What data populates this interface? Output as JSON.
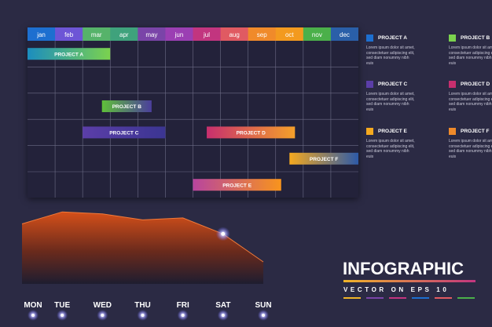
{
  "chart_data": [
    {
      "type": "gantt",
      "categories": [
        "jan",
        "feb",
        "mar",
        "apr",
        "may",
        "jun",
        "jul",
        "aug",
        "sep",
        "oct",
        "nov",
        "dec"
      ],
      "month_colors": [
        "#1d6fd0",
        "#6d55d6",
        "#56b36a",
        "#3fa27c",
        "#7a44a8",
        "#9b3fb3",
        "#c2357f",
        "#e05a62",
        "#f08a2a",
        "#f39a1f",
        "#4bb04a",
        "#2a5fa8"
      ],
      "tasks": [
        {
          "name": "PROJECT A",
          "start": 0,
          "end": 3,
          "row": 0,
          "colors": [
            "#1b8dbf",
            "#7bd24e"
          ]
        },
        {
          "name": "PROJECT B",
          "start": 2.7,
          "end": 4.5,
          "row": 2,
          "colors": [
            "#5fbf3a",
            "#4b3e9c"
          ]
        },
        {
          "name": "PROJECT C",
          "start": 2,
          "end": 5,
          "row": 3,
          "colors": [
            "#5b3ea8",
            "#3b3592"
          ]
        },
        {
          "name": "PROJECT D",
          "start": 6.5,
          "end": 9.7,
          "row": 3,
          "colors": [
            "#c72f6e",
            "#f4a02a"
          ]
        },
        {
          "name": "PROJECT F",
          "start": 9.5,
          "end": 12,
          "row": 4,
          "colors": [
            "#f5a91f",
            "#2d5aa8"
          ]
        },
        {
          "name": "PROJECT E",
          "start": 6,
          "end": 9.2,
          "row": 5,
          "colors": [
            "#b8449f",
            "#f8941c"
          ]
        }
      ]
    },
    {
      "type": "area",
      "categories": [
        "MON",
        "TUE",
        "WED",
        "THU",
        "FRI",
        "SAT",
        "SUN"
      ],
      "values": [
        30,
        36,
        35,
        32,
        33,
        25,
        11
      ],
      "ylim": [
        0,
        40
      ],
      "highlight_index": 5
    }
  ],
  "legend": [
    {
      "title": "PROJECT A",
      "color": "#1d6fd0",
      "desc": "Lorem ipsum dolor sit amet, consectetuer adipiscing elit, sed diam nonummy nibh euis"
    },
    {
      "title": "PROJECT B",
      "color": "#7bd24e",
      "desc": "Lorem ipsum dolor sit amet, consectetuer adipiscing elit, sed diam nonummy nibh euis"
    },
    {
      "title": "PROJECT C",
      "color": "#5b3ea8",
      "desc": "Lorem ipsum dolor sit amet, consectetuer adipiscing elit, sed diam nonummy nibh euis"
    },
    {
      "title": "PROJECT D",
      "color": "#c72f6e",
      "desc": "Lorem ipsum dolor sit amet, consectetuer adipiscing elit, sed diam nonummy nibh euis"
    },
    {
      "title": "PROJECT E",
      "color": "#f5a91f",
      "desc": "Lorem ipsum dolor sit amet, consectetuer adipiscing elit, sed diam nonummy nibh euis"
    },
    {
      "title": "PROJECT F",
      "color": "#f08a2a",
      "desc": "Lorem ipsum dolor sit amet, consectetuer adipiscing elit, sed diam nonummy nibh euis"
    }
  ],
  "infographic": {
    "title": "INFOGRAPHIC",
    "subtitle": "VECTOR ON EPS 10",
    "underline_colors": [
      "#f0b429",
      "#c2357f"
    ],
    "dash_colors": [
      "#f0b429",
      "#7a44a8",
      "#c2357f",
      "#1d6fd0",
      "#e05a62",
      "#4bb04a"
    ]
  }
}
